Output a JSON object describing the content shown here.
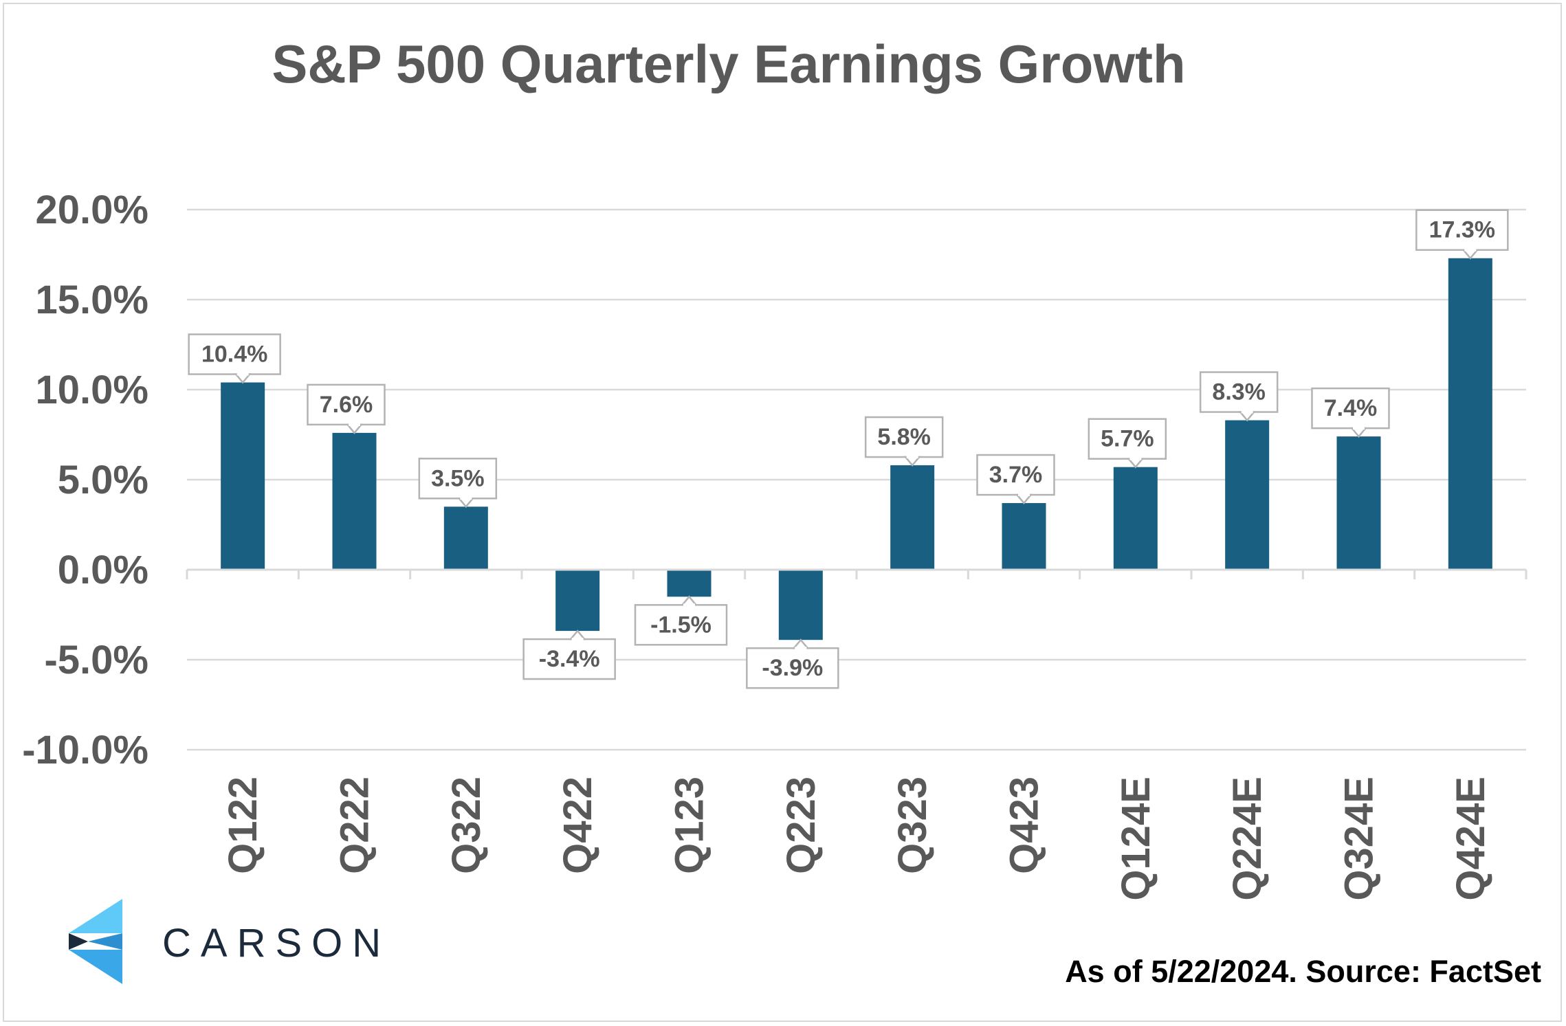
{
  "source_note": "As of 5/22/2024. Source: FactSet",
  "logo": {
    "wordmark": "CARSON",
    "icon": "carson-chevron-logo-icon"
  },
  "colors": {
    "bar": "#185f82",
    "grid": "#d9d9d9",
    "axis_text": "#595959",
    "label_border": "#b3b3b3",
    "label_text": "#595959",
    "logo_text": "#1c2b3c",
    "logo_light": "#5fc9f8",
    "logo_dark": "#1c2b3c"
  },
  "chart_data": {
    "type": "bar",
    "title": "S&P 500 Quarterly Earnings Growth",
    "xlabel": "",
    "ylabel": "",
    "ylim": [
      -10,
      20
    ],
    "yticks": [
      20,
      15,
      10,
      5,
      0,
      -5,
      -10
    ],
    "ytick_labels": [
      "20.0%",
      "15.0%",
      "10.0%",
      "5.0%",
      "0.0%",
      "-5.0%",
      "-10.0%"
    ],
    "categories": [
      "Q122",
      "Q222",
      "Q322",
      "Q422",
      "Q123",
      "Q223",
      "Q323",
      "Q423",
      "Q124E",
      "Q224E",
      "Q324E",
      "Q424E"
    ],
    "values": [
      10.4,
      7.6,
      3.5,
      -3.4,
      -1.5,
      -3.9,
      5.8,
      3.7,
      5.7,
      8.3,
      7.4,
      17.3
    ],
    "data_labels": [
      "10.4%",
      "7.6%",
      "3.5%",
      "-3.4%",
      "-1.5%",
      "-3.9%",
      "5.8%",
      "3.7%",
      "5.7%",
      "8.3%",
      "7.4%",
      "17.3%"
    ],
    "grid": true,
    "legend": "none"
  }
}
